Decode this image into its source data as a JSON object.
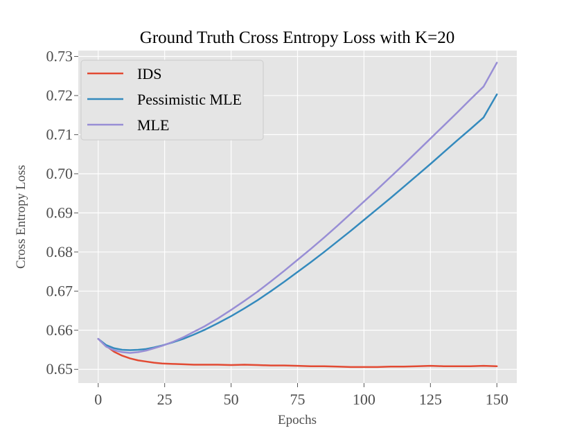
{
  "chart_data": {
    "type": "line",
    "title": "Ground Truth Cross Entropy Loss with K=20",
    "xlabel": "Epochs",
    "ylabel": "Cross Entropy Loss",
    "xlim": [
      -7.5,
      157.5
    ],
    "ylim": [
      0.6465,
      0.7315
    ],
    "xticks": [
      0,
      25,
      50,
      75,
      100,
      125,
      150
    ],
    "xtick_labels": [
      "0",
      "25",
      "50",
      "75",
      "100",
      "125",
      "150"
    ],
    "yticks": [
      0.65,
      0.66,
      0.67,
      0.68,
      0.69,
      0.7,
      0.71,
      0.72,
      0.73
    ],
    "ytick_labels": [
      "0.65",
      "0.66",
      "0.67",
      "0.68",
      "0.69",
      "0.70",
      "0.71",
      "0.72",
      "0.73"
    ],
    "grid": true,
    "legend_position": "top-left",
    "series": [
      {
        "name": "IDS",
        "color": "#e24a33",
        "x": [
          0,
          3,
          6,
          9,
          12,
          15,
          18,
          21,
          24,
          28,
          32,
          36,
          40,
          45,
          50,
          55,
          60,
          65,
          70,
          75,
          80,
          85,
          90,
          95,
          100,
          105,
          110,
          115,
          120,
          125,
          130,
          135,
          140,
          145,
          150
        ],
        "values": [
          0.6578,
          0.656,
          0.6545,
          0.6535,
          0.6528,
          0.6523,
          0.652,
          0.6517,
          0.6515,
          0.6514,
          0.6513,
          0.6512,
          0.6512,
          0.6512,
          0.6511,
          0.6512,
          0.6511,
          0.651,
          0.651,
          0.6509,
          0.6508,
          0.6508,
          0.6507,
          0.6506,
          0.6506,
          0.6506,
          0.6507,
          0.6507,
          0.6508,
          0.6509,
          0.6508,
          0.6508,
          0.6508,
          0.6509,
          0.6508
        ]
      },
      {
        "name": "Pessimistic MLE",
        "color": "#348abd",
        "x": [
          0,
          3,
          6,
          9,
          12,
          15,
          18,
          21,
          24,
          28,
          32,
          36,
          40,
          45,
          50,
          55,
          60,
          65,
          70,
          75,
          80,
          85,
          90,
          95,
          100,
          105,
          110,
          115,
          120,
          125,
          130,
          135,
          140,
          145,
          150
        ],
        "values": [
          0.6578,
          0.6562,
          0.6554,
          0.655,
          0.6549,
          0.655,
          0.6552,
          0.6556,
          0.6561,
          0.6569,
          0.6578,
          0.6589,
          0.6601,
          0.6618,
          0.6636,
          0.6656,
          0.6677,
          0.67,
          0.6724,
          0.6749,
          0.6774,
          0.68,
          0.6827,
          0.6854,
          0.6882,
          0.691,
          0.6938,
          0.6967,
          0.6996,
          0.7025,
          0.7055,
          0.7085,
          0.7114,
          0.7144,
          0.7203
        ]
      },
      {
        "name": "MLE",
        "color": "#988ed5",
        "x": [
          0,
          3,
          6,
          9,
          12,
          15,
          18,
          21,
          24,
          28,
          32,
          36,
          40,
          45,
          50,
          55,
          60,
          65,
          70,
          75,
          80,
          85,
          90,
          95,
          100,
          105,
          110,
          115,
          120,
          125,
          130,
          135,
          140,
          145,
          150
        ],
        "values": [
          0.6578,
          0.6558,
          0.6549,
          0.6544,
          0.6542,
          0.6544,
          0.6548,
          0.6554,
          0.656,
          0.657,
          0.6582,
          0.6596,
          0.661,
          0.663,
          0.6652,
          0.6675,
          0.6699,
          0.6725,
          0.6752,
          0.678,
          0.6808,
          0.6837,
          0.6867,
          0.6898,
          0.6929,
          0.696,
          0.6992,
          0.7024,
          0.7057,
          0.709,
          0.7123,
          0.7156,
          0.719,
          0.7223,
          0.7284
        ]
      }
    ]
  }
}
